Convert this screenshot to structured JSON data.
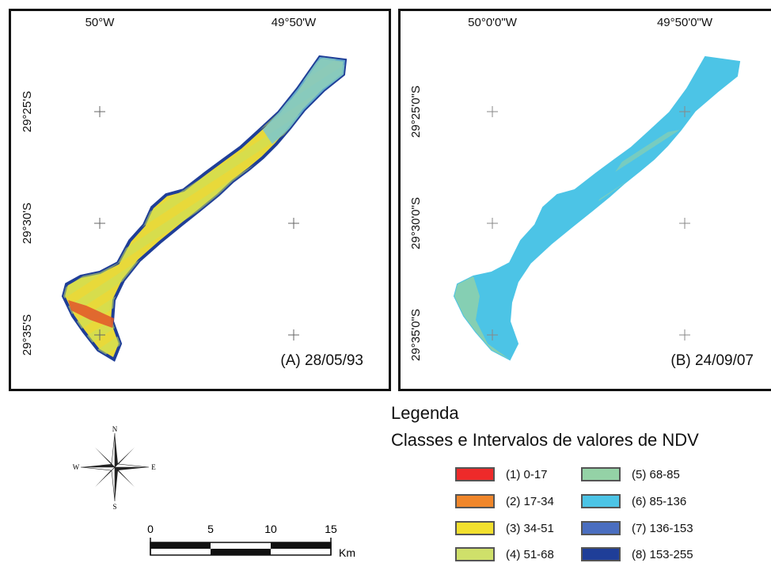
{
  "panel_a": {
    "caption": "(A) 28/05/93",
    "lon_labels": [
      "50°W",
      "49°50'W"
    ],
    "lat_labels": [
      "29°25'S",
      "29°30'S",
      "29°35'S"
    ]
  },
  "panel_b": {
    "caption": "(B) 24/09/07",
    "lon_labels": [
      "50°0'0\"W",
      "49°50'0\"W"
    ],
    "lat_labels": [
      "29°25'0\"S",
      "29°30'0\"S",
      "29°35'0\"S"
    ]
  },
  "legend": {
    "title": "Legenda",
    "subtitle": "Classes e Intervalos de valores de NDV",
    "classes": [
      {
        "label": "(1) 0-17",
        "color": "#ee2a2a"
      },
      {
        "label": "(2) 17-34",
        "color": "#f0862a"
      },
      {
        "label": "(3) 34-51",
        "color": "#f2e02e"
      },
      {
        "label": "(4) 51-68",
        "color": "#cfe06a"
      },
      {
        "label": "(5) 68-85",
        "color": "#94d2a6"
      },
      {
        "label": "(6) 85-136",
        "color": "#4cc4e6"
      },
      {
        "label": "(7) 136-153",
        "color": "#4a6ec0"
      },
      {
        "label": "(8) 153-255",
        "color": "#1f3e98"
      }
    ]
  },
  "compass": {
    "north": "N",
    "south": "S",
    "east": "E",
    "west": "W"
  },
  "scale": {
    "ticks": [
      "0",
      "5",
      "10",
      "15"
    ],
    "unit": "Km"
  }
}
